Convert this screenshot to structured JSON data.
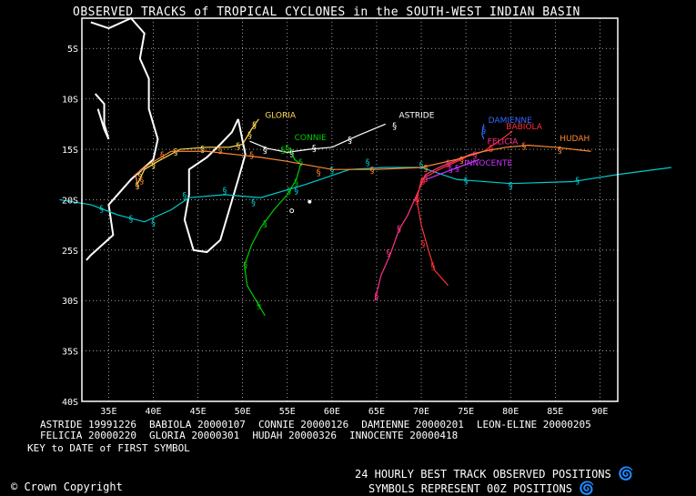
{
  "title": "OBSERVED TRACKS of TROPICAL CYCLONES in the SOUTH-WEST INDIAN BASIN",
  "axes": {
    "lon_ticks": [
      "35E",
      "40E",
      "45E",
      "50E",
      "55E",
      "60E",
      "65E",
      "70E",
      "75E",
      "80E",
      "85E",
      "90E"
    ],
    "lat_ticks": [
      "5S",
      "10S",
      "15S",
      "20S",
      "25S",
      "30S",
      "35S",
      "40S"
    ],
    "lon_range": [
      32,
      92
    ],
    "lat_range": [
      -2,
      -40
    ],
    "grid": true
  },
  "colors": {
    "ASTRIDE": "#ffffff",
    "BABIOLA": "#ff3333",
    "CONNIE": "#00cc00",
    "DAMIENNE": "#3366ff",
    "LEON-ELINE": "#00cccc",
    "FELICIA": "#ff3388",
    "GLORIA": "#ffdd55",
    "HUDAH": "#ff8833",
    "INNOCENTE": "#cc33ff"
  },
  "storms": [
    {
      "name": "ASTRIDE",
      "track": [
        [
          66.0,
          -12.5
        ],
        [
          63.0,
          -13.6
        ],
        [
          60.0,
          -14.8
        ],
        [
          57.5,
          -15.0
        ],
        [
          55.0,
          -15.3
        ],
        [
          52.7,
          -14.9
        ],
        [
          50.8,
          -14.2
        ]
      ],
      "symbols": [
        [
          67.0,
          -12.6
        ],
        [
          62.0,
          -14.0
        ],
        [
          58.0,
          -14.8
        ],
        [
          55.5,
          -15.3
        ],
        [
          52.5,
          -15.0
        ]
      ],
      "label": {
        "text": "ASTRIDE",
        "lon": 67.5,
        "lat": -11.9
      }
    },
    {
      "name": "BABIOLA",
      "track": [
        [
          77.0,
          -15.2
        ],
        [
          78.0,
          -14.6
        ],
        [
          79.0,
          -14.0
        ],
        [
          80.2,
          -13.2
        ]
      ],
      "symbols": [
        [
          77.8,
          -14.8
        ]
      ],
      "label": {
        "text": "BABIOLA",
        "lon": 79.5,
        "lat": -13.0
      }
    },
    {
      "name": "CONNIE",
      "track": [
        [
          55.3,
          -14.8
        ],
        [
          55.8,
          -16.0
        ],
        [
          56.5,
          -16.5
        ],
        [
          56.0,
          -18.0
        ],
        [
          55.0,
          -19.5
        ],
        [
          53.5,
          -21.0
        ],
        [
          52.0,
          -22.8
        ],
        [
          51.0,
          -24.5
        ],
        [
          50.2,
          -26.5
        ],
        [
          50.5,
          -28.5
        ],
        [
          51.5,
          -30.0
        ],
        [
          52.5,
          -31.5
        ]
      ],
      "symbols": [
        [
          55.0,
          -14.8
        ],
        [
          54.5,
          -15.0
        ],
        [
          56.5,
          -16.2
        ],
        [
          56.0,
          -18.2
        ],
        [
          55.2,
          -19.0
        ],
        [
          52.5,
          -22.3
        ],
        [
          50.3,
          -26.4
        ],
        [
          51.8,
          -30.4
        ]
      ],
      "label": {
        "text": "CONNIE",
        "lon": 55.8,
        "lat": -14.1
      }
    },
    {
      "name": "DAMIENNE",
      "track": [
        [
          77.0,
          -12.5
        ],
        [
          76.8,
          -13.5
        ],
        [
          77.0,
          -14.0
        ]
      ],
      "symbols": [
        [
          77.0,
          -13.0
        ]
      ],
      "label": {
        "text": "DAMIENNE",
        "lon": 77.5,
        "lat": -12.4
      }
    },
    {
      "name": "LEON-ELINE",
      "track": [
        [
          98.0,
          -16.8
        ],
        [
          92.0,
          -17.5
        ],
        [
          87.0,
          -18.2
        ],
        [
          80.0,
          -18.4
        ],
        [
          74.0,
          -18.0
        ],
        [
          70.0,
          -16.8
        ],
        [
          66.0,
          -16.8
        ],
        [
          62.0,
          -17.0
        ],
        [
          57.0,
          -18.5
        ],
        [
          52.0,
          -19.8
        ],
        [
          48.0,
          -19.5
        ],
        [
          44.0,
          -19.8
        ],
        [
          42.0,
          -21.0
        ],
        [
          39.0,
          -22.2
        ],
        [
          36.0,
          -21.5
        ],
        [
          33.0,
          -20.5
        ],
        [
          29.5,
          -20.0
        ]
      ],
      "symbols": [
        [
          87.5,
          -18.0
        ],
        [
          80.0,
          -18.5
        ],
        [
          75.0,
          -18.0
        ],
        [
          70.0,
          -16.5
        ],
        [
          64.0,
          -16.2
        ],
        [
          60.0,
          -17.0
        ],
        [
          56.0,
          -19.0
        ],
        [
          51.2,
          -20.2
        ],
        [
          48.0,
          -19.0
        ],
        [
          43.5,
          -19.5
        ],
        [
          40.0,
          -22.2
        ],
        [
          37.5,
          -21.8
        ],
        [
          34.2,
          -20.8
        ]
      ],
      "label": {
        "text": "",
        "lon": 0,
        "lat": 0
      }
    },
    {
      "name": "FELICIA",
      "track": [
        [
          78.0,
          -15.0
        ],
        [
          75.5,
          -15.5
        ],
        [
          72.0,
          -16.8
        ],
        [
          70.5,
          -17.5
        ],
        [
          69.5,
          -19.5
        ],
        [
          68.5,
          -21.5
        ],
        [
          67.5,
          -23.0
        ],
        [
          66.5,
          -25.5
        ],
        [
          65.5,
          -27.5
        ],
        [
          64.8,
          -30.0
        ]
      ],
      "symbols": [
        [
          76.0,
          -15.5
        ],
        [
          73.0,
          -16.3
        ],
        [
          70.5,
          -17.8
        ],
        [
          69.5,
          -20.0
        ],
        [
          67.5,
          -22.8
        ],
        [
          66.3,
          -25.2
        ],
        [
          65.0,
          -29.5
        ]
      ],
      "label": {
        "text": "FELICIA",
        "lon": 77.4,
        "lat": -14.5
      }
    },
    {
      "name": "GLORIA",
      "track": [
        [
          51.8,
          -12.0
        ],
        [
          51.0,
          -13.0
        ],
        [
          50.0,
          -14.5
        ],
        [
          48.5,
          -14.8
        ],
        [
          46.0,
          -14.8
        ],
        [
          43.0,
          -15.0
        ],
        [
          40.5,
          -16.2
        ],
        [
          39.0,
          -17.0
        ],
        [
          38.2,
          -18.5
        ]
      ],
      "symbols": [
        [
          51.3,
          -12.5
        ],
        [
          50.8,
          -13.5
        ],
        [
          49.5,
          -14.6
        ],
        [
          45.5,
          -14.9
        ],
        [
          42.5,
          -15.2
        ],
        [
          40.0,
          -16.5
        ],
        [
          38.5,
          -17.5
        ],
        [
          38.2,
          -18.5
        ]
      ],
      "label": {
        "text": "GLORIA",
        "lon": 52.5,
        "lat": -11.9
      }
    },
    {
      "name": "HUDAH",
      "track": [
        [
          89.0,
          -15.2
        ],
        [
          85.0,
          -14.8
        ],
        [
          82.0,
          -14.6
        ],
        [
          79.5,
          -14.8
        ],
        [
          77.0,
          -15.2
        ],
        [
          74.0,
          -16.0
        ],
        [
          70.0,
          -16.8
        ],
        [
          65.0,
          -17.0
        ],
        [
          60.0,
          -17.0
        ],
        [
          55.0,
          -16.2
        ],
        [
          52.0,
          -15.8
        ],
        [
          49.0,
          -15.5
        ],
        [
          46.0,
          -15.2
        ],
        [
          42.0,
          -15.2
        ],
        [
          39.5,
          -16.5
        ],
        [
          38.0,
          -17.5
        ],
        [
          38.3,
          -18.8
        ]
      ],
      "symbols": [
        [
          85.5,
          -15.0
        ],
        [
          81.5,
          -14.6
        ],
        [
          74.5,
          -16.0
        ],
        [
          70.5,
          -16.8
        ],
        [
          64.5,
          -17.0
        ],
        [
          58.5,
          -17.2
        ],
        [
          51.0,
          -15.5
        ],
        [
          47.5,
          -15.0
        ],
        [
          41.0,
          -15.5
        ],
        [
          38.7,
          -18.0
        ]
      ],
      "label": {
        "text": "HUDAH",
        "lon": 85.5,
        "lat": -14.2
      }
    },
    {
      "name": "INNOCENTE",
      "track": [
        [
          76.5,
          -16.0
        ],
        [
          75.0,
          -16.5
        ],
        [
          73.5,
          -17.0
        ],
        [
          72.0,
          -17.5
        ],
        [
          70.5,
          -18.0
        ]
      ],
      "symbols": [
        [
          74.0,
          -16.8
        ],
        [
          73.3,
          -16.9
        ]
      ],
      "label": {
        "text": "INNOCENTE",
        "lon": 74.8,
        "lat": -16.6
      }
    },
    {
      "name": "BABIOLA-S",
      "track": [
        [
          75.0,
          -15.8
        ],
        [
          72.0,
          -17.0
        ],
        [
          70.0,
          -18.0
        ],
        [
          69.5,
          -20.0
        ],
        [
          70.0,
          -22.5
        ],
        [
          70.8,
          -25.0
        ],
        [
          71.5,
          -27.0
        ],
        [
          73.0,
          -28.5
        ]
      ],
      "symbols": [
        [
          70.2,
          -18.0
        ],
        [
          69.6,
          -19.8
        ],
        [
          70.2,
          -24.3
        ],
        [
          71.3,
          -26.5
        ]
      ],
      "label": {
        "text": "",
        "lon": 0,
        "lat": 0
      }
    }
  ],
  "legend": {
    "row1": [
      "ASTRIDE 19991226",
      "BABIOLA 20000107",
      "CONNIE 20000126",
      "DAMIENNE 20000201",
      "LEON-ELINE 20000205"
    ],
    "row2": [
      "FELICIA 20000220",
      "GLORIA 20000301",
      "HUDAH 20000326",
      "INNOCENTE 20000418"
    ],
    "key": "KEY to DATE of FIRST SYMBOL"
  },
  "footer": {
    "line1": "24 HOURLY BEST TRACK OBSERVED POSITIONS",
    "line2": "SYMBOLS REPRESENT 00Z POSITIONS",
    "copyright": "© Crown Copyright"
  },
  "icons": {
    "cyclone_symbol": "cyclone-symbol-icon"
  }
}
